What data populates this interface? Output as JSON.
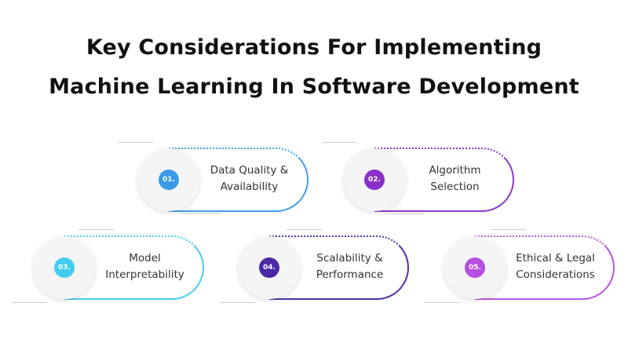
{
  "title": {
    "line1": "Key Considerations For Implementing",
    "line2": "Machine Learning In Software Development"
  },
  "items": [
    {
      "number": "01.",
      "line1": "Data Quality &",
      "line2": "Availability",
      "color": "#3a9ae8"
    },
    {
      "number": "02.",
      "line1": "Algorithm",
      "line2": "Selection",
      "color": "#8a2fc8"
    },
    {
      "number": "03.",
      "line1": "Model",
      "line2": "Interpretability",
      "color": "#42cdf0"
    },
    {
      "number": "04.",
      "line1": "Scalability &",
      "line2": "Performance",
      "color": "#4a28a6"
    },
    {
      "number": "05.",
      "line1": "Ethical & Legal",
      "line2": "Considerations",
      "color": "#b64fe0"
    }
  ]
}
